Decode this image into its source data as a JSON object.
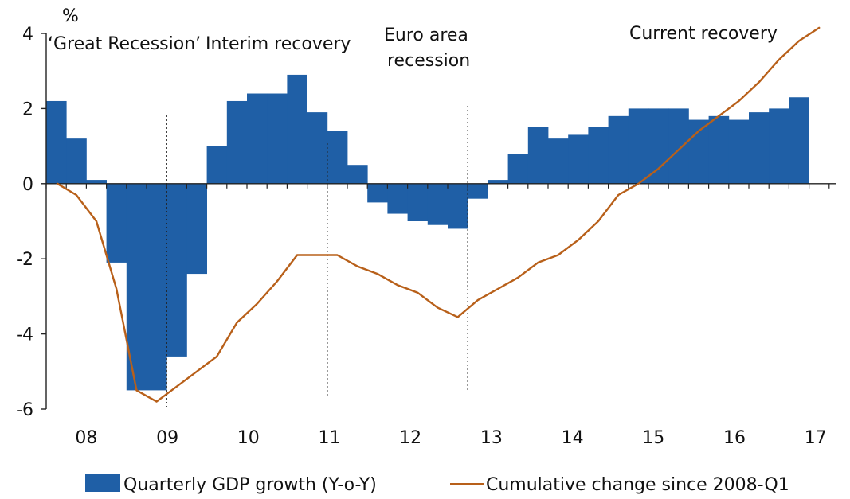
{
  "chart_data": {
    "type": "bar+line",
    "y_unit": "%",
    "ylim": [
      -6,
      4
    ],
    "y_ticks": [
      4,
      2,
      0,
      -2,
      -4,
      -6
    ],
    "x_ticks": [
      "08",
      "09",
      "10",
      "11",
      "12",
      "13",
      "14",
      "15",
      "16",
      "17"
    ],
    "quarters": [
      "2008-Q1",
      "2008-Q2",
      "2008-Q3",
      "2008-Q4",
      "2009-Q1",
      "2009-Q2",
      "2009-Q3",
      "2009-Q4",
      "2010-Q1",
      "2010-Q2",
      "2010-Q3",
      "2010-Q4",
      "2011-Q1",
      "2011-Q2",
      "2011-Q3",
      "2011-Q4",
      "2012-Q1",
      "2012-Q2",
      "2012-Q3",
      "2012-Q4",
      "2013-Q1",
      "2013-Q2",
      "2013-Q3",
      "2013-Q4",
      "2014-Q1",
      "2014-Q2",
      "2014-Q3",
      "2014-Q4",
      "2015-Q1",
      "2015-Q2",
      "2015-Q3",
      "2015-Q4",
      "2016-Q1",
      "2016-Q2",
      "2016-Q3",
      "2016-Q4",
      "2017-Q1",
      "2017-Q2",
      "2017-Q3"
    ],
    "series": [
      {
        "name": "Quarterly GDP growth (Y-o-Y)",
        "kind": "bar",
        "color": "#1f5fa6",
        "values": [
          2.2,
          1.2,
          0.1,
          -2.1,
          -5.5,
          -5.5,
          -4.6,
          -2.4,
          1.0,
          2.2,
          2.4,
          2.4,
          2.9,
          1.9,
          1.4,
          0.5,
          -0.5,
          -0.8,
          -1.0,
          -1.1,
          -1.2,
          -0.4,
          0.1,
          0.8,
          1.5,
          1.2,
          1.3,
          1.5,
          1.8,
          2.0,
          2.0,
          2.0,
          1.7,
          1.8,
          1.7,
          1.9,
          2.0,
          2.3,
          0
        ]
      },
      {
        "name": "Cumulative change since 2008-Q1",
        "kind": "line",
        "color": "#b8601a",
        "values": [
          0.0,
          -0.3,
          -1.0,
          -2.8,
          -5.5,
          -5.8,
          -5.4,
          -5.0,
          -4.6,
          -3.7,
          -3.2,
          -2.6,
          -1.9,
          -1.9,
          -1.9,
          -2.2,
          -2.4,
          -2.7,
          -2.9,
          -3.3,
          -3.55,
          -3.1,
          -2.8,
          -2.5,
          -2.1,
          -1.9,
          -1.5,
          -1.0,
          -0.3,
          0.0,
          0.4,
          0.9,
          1.4,
          1.8,
          2.2,
          2.7,
          3.3,
          3.8,
          4.15
        ]
      }
    ],
    "period_labels": [
      {
        "lines": [
          "‘Great Recession’"
        ]
      },
      {
        "lines": [
          "Interim recovery"
        ]
      },
      {
        "lines": [
          "Euro area",
          "recession"
        ]
      },
      {
        "lines": [
          "Current recovery"
        ]
      }
    ],
    "period_dividers_after_quarter": [
      "2009-Q2",
      "2011-Q2",
      "2013-Q1"
    ],
    "legend_position": "bottom",
    "grid": false
  }
}
